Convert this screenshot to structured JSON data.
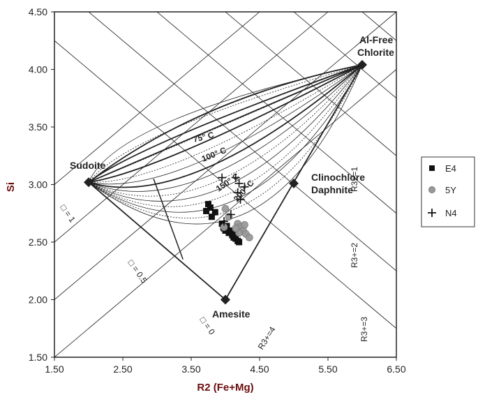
{
  "chart_data": {
    "type": "scatter",
    "xlabel": "R2 (Fe+Mg)",
    "ylabel": "Si",
    "xlim": [
      1.5,
      6.5
    ],
    "ylim": [
      1.5,
      4.5
    ],
    "xticks": [
      "1.50",
      "2.50",
      "3.50",
      "4.50",
      "5.50",
      "6.50"
    ],
    "yticks": [
      "1.50",
      "2.00",
      "2.50",
      "3.00",
      "3.50",
      "4.00",
      "4.50"
    ],
    "grid": false,
    "legend_position": "right",
    "end_members": [
      {
        "label": "Sudoite",
        "x": 2.0,
        "y": 3.02
      },
      {
        "label": "Al-Free",
        "label2": "Chlorite",
        "x": 6.0,
        "y": 4.04
      },
      {
        "label": "Clinochlore",
        "label2": "Daphnite",
        "x": 5.0,
        "y": 3.01
      },
      {
        "label": "Amesite",
        "x": 4.0,
        "y": 2.0
      }
    ],
    "isotherm_labels": [
      "75° C",
      "100° C",
      "150° C",
      "200° C"
    ],
    "r3_line_labels": [
      "R3+=1",
      "R3+=2",
      "R3+=3",
      "R3+=4"
    ],
    "vacancy_labels": [
      "□ = 1",
      "□ = 0.5",
      "□ = 0"
    ],
    "series": [
      {
        "name": "E4",
        "marker": "square",
        "color": "#111111",
        "x": [
          3.78,
          3.72,
          3.85,
          3.8,
          3.75,
          3.95,
          3.98,
          4.02,
          4.0,
          4.05,
          4.1,
          4.12,
          4.15,
          4.18,
          4.2,
          4.08,
          4.14,
          3.97
        ],
        "y": [
          2.8,
          2.77,
          2.76,
          2.72,
          2.83,
          2.66,
          2.62,
          2.64,
          2.6,
          2.58,
          2.56,
          2.54,
          2.53,
          2.51,
          2.5,
          2.6,
          2.57,
          2.63
        ]
      },
      {
        "name": "5Y",
        "marker": "circle",
        "color": "#999999",
        "x": [
          4.0,
          4.05,
          4.18,
          4.22,
          4.26,
          4.3,
          4.35,
          4.2,
          4.28,
          4.15,
          3.98
        ],
        "y": [
          2.79,
          2.72,
          2.66,
          2.63,
          2.6,
          2.57,
          2.54,
          2.58,
          2.65,
          2.62,
          2.63
        ]
      },
      {
        "name": "N4",
        "marker": "plus",
        "color": "#111111",
        "x": [
          3.95,
          4.15,
          4.2,
          4.28,
          4.18,
          4.22,
          4.08,
          3.98
        ],
        "y": [
          3.06,
          3.06,
          3.01,
          2.98,
          2.93,
          2.87,
          2.74,
          2.68
        ]
      }
    ]
  }
}
